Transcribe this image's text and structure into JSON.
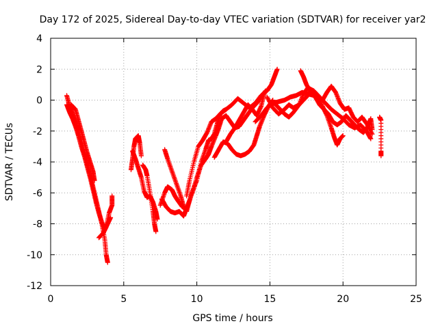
{
  "chart_data": {
    "type": "scatter",
    "title": "Day 172 of 2025, Sidereal Day-to-day VTEC variation (SDTVAR) for receiver yar2",
    "xlabel": "GPS time / hours",
    "ylabel": "SDTVAR / TECUs",
    "xlim": [
      0,
      25
    ],
    "ylim": [
      -12,
      4
    ],
    "xticks": [
      0,
      5,
      10,
      15,
      20,
      25
    ],
    "yticks": [
      -12,
      -10,
      -8,
      -6,
      -4,
      -2,
      0,
      2,
      4
    ],
    "grid": true,
    "marker": "+",
    "series": [
      {
        "name": "SDTVAR",
        "color": "#ff0000",
        "segments": [
          [
            [
              1.1,
              -0.3
            ],
            [
              1.3,
              -0.8
            ],
            [
              1.5,
              -1.2
            ],
            [
              1.7,
              -1.7
            ],
            [
              1.9,
              -2.3
            ],
            [
              2.1,
              -3.0
            ],
            [
              2.3,
              -3.6
            ],
            [
              2.5,
              -4.3
            ],
            [
              2.7,
              -5.0
            ],
            [
              2.9,
              -5.8
            ],
            [
              3.1,
              -6.6
            ],
            [
              3.3,
              -7.3
            ],
            [
              3.5,
              -7.9
            ],
            [
              3.7,
              -8.4
            ],
            [
              3.9,
              -8.0
            ],
            [
              4.1,
              -7.6
            ]
          ],
          [
            [
              1.1,
              0.3
            ],
            [
              1.3,
              -0.4
            ],
            [
              1.5,
              -0.9
            ],
            [
              1.7,
              -1.4
            ],
            [
              1.9,
              -2.0
            ],
            [
              2.1,
              -2.7
            ],
            [
              2.3,
              -3.4
            ],
            [
              2.5,
              -4.1
            ],
            [
              2.7,
              -4.8
            ],
            [
              2.9,
              -5.6
            ],
            [
              3.1,
              -6.4
            ],
            [
              3.3,
              -7.2
            ],
            [
              3.5,
              -8.0
            ],
            [
              3.7,
              -9.0
            ],
            [
              3.8,
              -10.0
            ],
            [
              3.9,
              -10.5
            ]
          ],
          [
            [
              1.4,
              -0.3
            ],
            [
              1.7,
              -0.6
            ],
            [
              1.9,
              -1.3
            ],
            [
              2.1,
              -2.0
            ],
            [
              2.3,
              -2.7
            ],
            [
              2.5,
              -3.4
            ],
            [
              2.7,
              -4.0
            ],
            [
              2.9,
              -4.6
            ],
            [
              3.0,
              -5.2
            ]
          ],
          [
            [
              3.3,
              -8.9
            ],
            [
              3.6,
              -8.6
            ],
            [
              3.8,
              -8.2
            ],
            [
              4.0,
              -7.3
            ],
            [
              4.2,
              -6.8
            ],
            [
              4.2,
              -6.2
            ]
          ],
          [
            [
              5.5,
              -4.5
            ],
            [
              5.6,
              -3.8
            ],
            [
              5.7,
              -3.0
            ],
            [
              5.8,
              -2.5
            ],
            [
              6.0,
              -2.3
            ],
            [
              6.1,
              -2.8
            ],
            [
              6.2,
              -3.6
            ]
          ],
          [
            [
              5.6,
              -3.3
            ],
            [
              5.8,
              -3.8
            ],
            [
              6.0,
              -4.4
            ],
            [
              6.2,
              -5.0
            ],
            [
              6.4,
              -5.9
            ],
            [
              6.6,
              -6.3
            ],
            [
              6.8,
              -6.2
            ],
            [
              7.0,
              -6.6
            ],
            [
              7.2,
              -7.2
            ],
            [
              7.3,
              -7.7
            ]
          ],
          [
            [
              6.3,
              -4.2
            ],
            [
              6.5,
              -4.5
            ],
            [
              6.6,
              -4.9
            ],
            [
              6.8,
              -6.0
            ],
            [
              7.0,
              -7.2
            ],
            [
              7.1,
              -8.0
            ],
            [
              7.2,
              -8.5
            ]
          ],
          [
            [
              7.5,
              -6.8
            ],
            [
              7.8,
              -6.0
            ],
            [
              8.0,
              -5.6
            ],
            [
              8.3,
              -5.8
            ],
            [
              8.5,
              -6.2
            ],
            [
              8.7,
              -6.5
            ],
            [
              9.0,
              -6.9
            ],
            [
              9.3,
              -7.0
            ],
            [
              9.5,
              -6.5
            ],
            [
              9.7,
              -5.9
            ],
            [
              10.0,
              -5.2
            ],
            [
              10.3,
              -4.0
            ],
            [
              10.6,
              -3.2
            ],
            [
              10.8,
              -2.6
            ],
            [
              11.0,
              -2.5
            ],
            [
              11.2,
              -2.2
            ],
            [
              11.4,
              -1.5
            ],
            [
              11.6,
              -0.9
            ],
            [
              11.8,
              -0.7
            ],
            [
              12.0,
              -0.6
            ]
          ],
          [
            [
              7.8,
              -3.2
            ],
            [
              8.0,
              -3.8
            ],
            [
              8.3,
              -4.6
            ],
            [
              8.6,
              -5.4
            ],
            [
              8.9,
              -6.2
            ],
            [
              9.1,
              -6.9
            ],
            [
              9.3,
              -7.2
            ],
            [
              9.5,
              -6.5
            ]
          ],
          [
            [
              7.6,
              -6.4
            ],
            [
              7.9,
              -6.9
            ],
            [
              8.2,
              -7.2
            ],
            [
              8.5,
              -7.3
            ],
            [
              8.8,
              -7.2
            ],
            [
              9.1,
              -7.5
            ],
            [
              9.3,
              -7.0
            ]
          ],
          [
            [
              9.3,
              -6.2
            ],
            [
              9.5,
              -5.2
            ],
            [
              9.8,
              -4.0
            ],
            [
              10.1,
              -3.0
            ],
            [
              10.4,
              -2.6
            ],
            [
              10.7,
              -2.1
            ],
            [
              11.0,
              -1.4
            ],
            [
              11.3,
              -1.2
            ],
            [
              11.6,
              -0.9
            ],
            [
              12.0,
              -0.6
            ],
            [
              12.4,
              -0.3
            ],
            [
              12.8,
              0.1
            ],
            [
              13.2,
              -0.2
            ],
            [
              13.6,
              -0.5
            ],
            [
              14.0,
              -0.2
            ],
            [
              14.4,
              0.3
            ],
            [
              14.8,
              0.6
            ],
            [
              15.1,
              1.0
            ],
            [
              15.3,
              1.5
            ],
            [
              15.5,
              2.0
            ]
          ],
          [
            [
              9.7,
              -6.0
            ],
            [
              10.0,
              -5.0
            ],
            [
              10.3,
              -4.2
            ],
            [
              10.6,
              -3.8
            ],
            [
              10.8,
              -3.5
            ],
            [
              11.0,
              -3.0
            ],
            [
              11.3,
              -2.3
            ],
            [
              11.5,
              -1.8
            ],
            [
              11.7,
              -1.2
            ],
            [
              12.0,
              -1.0
            ],
            [
              12.3,
              -1.4
            ],
            [
              12.6,
              -1.8
            ],
            [
              12.9,
              -1.7
            ],
            [
              13.2,
              -1.3
            ],
            [
              13.5,
              -0.9
            ],
            [
              13.8,
              -0.5
            ],
            [
              14.1,
              -0.2
            ],
            [
              14.4,
              0.2
            ],
            [
              14.7,
              0.6
            ]
          ],
          [
            [
              11.2,
              -3.7
            ],
            [
              11.5,
              -3.2
            ],
            [
              11.8,
              -2.7
            ],
            [
              12.1,
              -2.8
            ],
            [
              12.4,
              -3.2
            ],
            [
              12.7,
              -3.5
            ],
            [
              13.0,
              -3.6
            ],
            [
              13.3,
              -3.5
            ],
            [
              13.6,
              -3.3
            ],
            [
              13.9,
              -2.9
            ],
            [
              14.1,
              -2.3
            ],
            [
              14.3,
              -1.7
            ],
            [
              14.6,
              -1.0
            ],
            [
              14.9,
              -0.4
            ],
            [
              15.2,
              0.0
            ]
          ],
          [
            [
              12.0,
              -2.7
            ],
            [
              12.3,
              -2.2
            ],
            [
              12.6,
              -1.8
            ],
            [
              12.9,
              -1.3
            ],
            [
              13.2,
              -0.8
            ],
            [
              13.5,
              -0.3
            ],
            [
              13.8,
              -0.6
            ],
            [
              14.1,
              -1.0
            ],
            [
              14.4,
              -0.4
            ],
            [
              14.6,
              0.4
            ]
          ],
          [
            [
              14.0,
              -1.4
            ],
            [
              14.4,
              -1.0
            ],
            [
              14.8,
              -0.5
            ],
            [
              15.2,
              -0.2
            ],
            [
              15.6,
              -0.1
            ],
            [
              16.0,
              0.0
            ],
            [
              16.4,
              0.2
            ],
            [
              16.8,
              0.3
            ],
            [
              17.2,
              0.5
            ],
            [
              17.6,
              0.4
            ],
            [
              18.0,
              0.3
            ],
            [
              18.4,
              0.2
            ],
            [
              18.8,
              -0.2
            ],
            [
              19.2,
              -0.6
            ],
            [
              19.6,
              -0.9
            ],
            [
              20.0,
              -1.2
            ],
            [
              20.4,
              -1.6
            ],
            [
              20.8,
              -1.8
            ],
            [
              21.2,
              -1.6
            ],
            [
              21.6,
              -2.0
            ],
            [
              21.9,
              -2.5
            ]
          ],
          [
            [
              14.8,
              0.2
            ],
            [
              15.2,
              -0.5
            ],
            [
              15.6,
              -0.9
            ],
            [
              16.0,
              -0.6
            ],
            [
              16.3,
              -0.3
            ],
            [
              16.6,
              -0.5
            ],
            [
              17.0,
              -0.3
            ],
            [
              17.4,
              0.1
            ],
            [
              17.8,
              0.5
            ],
            [
              18.2,
              0.3
            ],
            [
              18.6,
              -0.4
            ],
            [
              18.9,
              -1.0
            ],
            [
              19.2,
              -1.8
            ],
            [
              19.4,
              -2.4
            ],
            [
              19.6,
              -2.9
            ],
            [
              19.8,
              -2.5
            ],
            [
              20.0,
              -2.3
            ]
          ],
          [
            [
              15.4,
              -0.3
            ],
            [
              15.7,
              -0.6
            ],
            [
              16.0,
              -0.9
            ],
            [
              16.3,
              -1.1
            ],
            [
              16.6,
              -0.8
            ],
            [
              17.0,
              -0.3
            ],
            [
              17.3,
              0.4
            ],
            [
              17.6,
              0.8
            ],
            [
              18.0,
              0.6
            ],
            [
              18.3,
              0.3
            ],
            [
              18.6,
              0.0
            ],
            [
              18.9,
              0.5
            ],
            [
              19.2,
              0.9
            ],
            [
              19.5,
              0.5
            ],
            [
              19.8,
              -0.2
            ],
            [
              20.1,
              -0.6
            ],
            [
              20.4,
              -0.5
            ],
            [
              20.7,
              -1.1
            ],
            [
              21.0,
              -1.4
            ],
            [
              21.3,
              -1.1
            ],
            [
              21.6,
              -1.5
            ],
            [
              22.0,
              -2.2
            ]
          ],
          [
            [
              17.1,
              1.9
            ],
            [
              17.3,
              1.5
            ],
            [
              17.5,
              1.0
            ],
            [
              17.8,
              0.5
            ],
            [
              18.1,
              0.2
            ],
            [
              18.4,
              -0.3
            ],
            [
              18.7,
              -0.6
            ],
            [
              19.0,
              -0.9
            ],
            [
              19.3,
              -1.4
            ],
            [
              19.6,
              -1.6
            ],
            [
              19.9,
              -1.4
            ],
            [
              20.2,
              -1.0
            ],
            [
              20.5,
              -1.3
            ],
            [
              20.8,
              -1.6
            ],
            [
              21.1,
              -1.9
            ],
            [
              21.4,
              -2.1
            ],
            [
              21.7,
              -1.7
            ],
            [
              21.9,
              -1.2
            ],
            [
              22.0,
              -1.9
            ]
          ],
          [
            [
              22.5,
              -1.1
            ],
            [
              22.6,
              -1.3
            ],
            [
              22.6,
              -3.3
            ],
            [
              22.6,
              -3.6
            ]
          ]
        ]
      }
    ]
  }
}
